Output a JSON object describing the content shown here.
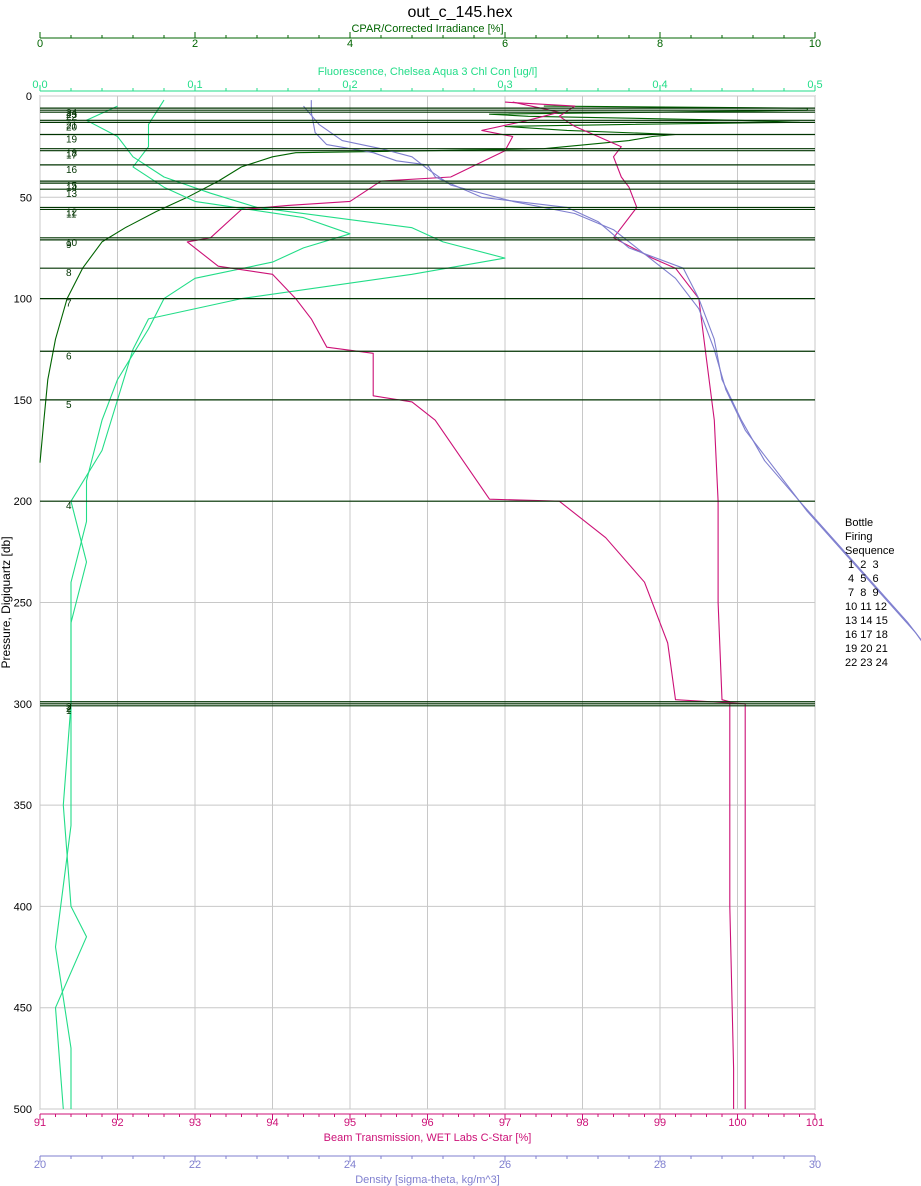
{
  "chart_data": {
    "type": "line",
    "title": "out_c_145.hex",
    "y_axis": {
      "label": "Pressure, Digiquartz [db]",
      "range": [
        0,
        500
      ],
      "ticks": [
        0,
        50,
        100,
        150,
        200,
        250,
        300,
        350,
        400,
        450,
        500
      ],
      "inverted": true
    },
    "x_axes": [
      {
        "id": "par",
        "label": "CPAR/Corrected Irradiance [%]",
        "position": "top-1",
        "range": [
          0,
          10
        ],
        "ticks": [
          0,
          2,
          4,
          6,
          8,
          10
        ],
        "color": "#006400"
      },
      {
        "id": "fl",
        "label": "Fluorescence, Chelsea Aqua 3 Chl Con [ug/l]",
        "position": "top-2",
        "range": [
          0,
          0.5
        ],
        "ticks": [
          0.0,
          0.1,
          0.2,
          0.3,
          0.4,
          0.5
        ],
        "tick_labels": [
          "0,0",
          "0,1",
          "0,2",
          "0,3",
          "0,4",
          "0,5"
        ],
        "color": "#22dd88"
      },
      {
        "id": "bt",
        "label": "Beam Transmission, WET Labs C-Star [%]",
        "position": "bottom-1",
        "range": [
          91,
          101
        ],
        "ticks": [
          91,
          92,
          93,
          94,
          95,
          96,
          97,
          98,
          99,
          100,
          101
        ],
        "color": "#cc1177"
      },
      {
        "id": "dens",
        "label": "Density [sigma-theta, kg/m^3]",
        "position": "bottom-2",
        "range": [
          20,
          30
        ],
        "ticks": [
          20,
          22,
          24,
          26,
          28,
          30
        ],
        "color": "#7f7fcf"
      }
    ],
    "grid": true,
    "bottle_firings": [
      {
        "label": "24",
        "p": 6
      },
      {
        "label": "23",
        "p": 7
      },
      {
        "label": "22",
        "p": 8
      },
      {
        "label": "21",
        "p": 12
      },
      {
        "label": "20",
        "p": 13
      },
      {
        "label": "19",
        "p": 19
      },
      {
        "label": "18",
        "p": 26
      },
      {
        "label": "17",
        "p": 27
      },
      {
        "label": "16",
        "p": 34
      },
      {
        "label": "15",
        "p": 42
      },
      {
        "label": "14",
        "p": 43
      },
      {
        "label": "13",
        "p": 46
      },
      {
        "label": "12",
        "p": 55
      },
      {
        "label": "11",
        "p": 56
      },
      {
        "label": "10",
        "p": 70
      },
      {
        "label": "9",
        "p": 71
      },
      {
        "label": "8",
        "p": 85
      },
      {
        "label": "7",
        "p": 100
      },
      {
        "label": "6",
        "p": 126
      },
      {
        "label": "5",
        "p": 150
      },
      {
        "label": "4",
        "p": 200
      },
      {
        "label": "3",
        "p": 299
      },
      {
        "label": "2",
        "p": 300
      },
      {
        "label": "1",
        "p": 301
      }
    ],
    "series": [
      {
        "axis": "par",
        "color": "#006400",
        "points": [
          [
            0.0,
            181
          ],
          [
            0.05,
            160
          ],
          [
            0.1,
            140
          ],
          [
            0.2,
            120
          ],
          [
            0.35,
            100
          ],
          [
            0.55,
            85
          ],
          [
            0.8,
            72
          ],
          [
            1.1,
            65
          ],
          [
            1.5,
            57
          ],
          [
            1.9,
            50
          ],
          [
            2.3,
            42
          ],
          [
            2.6,
            35
          ],
          [
            3.0,
            30
          ],
          [
            3.3,
            28
          ],
          [
            5.0,
            27
          ],
          [
            6.5,
            26
          ],
          [
            7.6,
            22
          ],
          [
            7.9,
            20
          ],
          [
            8.2,
            19
          ],
          [
            6.8,
            17
          ],
          [
            6.0,
            15
          ],
          [
            7.6,
            14
          ],
          [
            9.8,
            13
          ],
          [
            9.0,
            12
          ],
          [
            6.3,
            10
          ],
          [
            5.8,
            9
          ],
          [
            7.9,
            8
          ],
          [
            9.9,
            7
          ],
          [
            9.9,
            6
          ],
          [
            6.5,
            5
          ]
        ]
      },
      {
        "axis": "fl",
        "color": "#22dd88",
        "points": [
          [
            0.05,
            5
          ],
          [
            0.03,
            12
          ],
          [
            0.05,
            20
          ],
          [
            0.06,
            30
          ],
          [
            0.08,
            40
          ],
          [
            0.11,
            48
          ],
          [
            0.14,
            55
          ],
          [
            0.24,
            65
          ],
          [
            0.26,
            72
          ],
          [
            0.3,
            80
          ],
          [
            0.24,
            88
          ],
          [
            0.13,
            100
          ],
          [
            0.07,
            110
          ],
          [
            0.06,
            125
          ],
          [
            0.05,
            150
          ],
          [
            0.04,
            175
          ],
          [
            0.02,
            200
          ],
          [
            0.03,
            230
          ],
          [
            0.02,
            260
          ],
          [
            0.02,
            300
          ],
          [
            0.015,
            350
          ],
          [
            0.02,
            400
          ],
          [
            0.03,
            415
          ],
          [
            0.01,
            450
          ],
          [
            0.015,
            500
          ]
        ]
      },
      {
        "axis": "fl",
        "color": "#22dd88",
        "points": [
          [
            0.08,
            2
          ],
          [
            0.07,
            14
          ],
          [
            0.07,
            25
          ],
          [
            0.06,
            35
          ],
          [
            0.08,
            45
          ],
          [
            0.1,
            52
          ],
          [
            0.17,
            60
          ],
          [
            0.2,
            68
          ],
          [
            0.17,
            75
          ],
          [
            0.15,
            82
          ],
          [
            0.1,
            90
          ],
          [
            0.08,
            100
          ],
          [
            0.07,
            115
          ],
          [
            0.05,
            140
          ],
          [
            0.04,
            160
          ],
          [
            0.03,
            190
          ],
          [
            0.03,
            210
          ],
          [
            0.02,
            240
          ],
          [
            0.02,
            280
          ],
          [
            0.02,
            320
          ],
          [
            0.02,
            360
          ],
          [
            0.01,
            420
          ],
          [
            0.02,
            470
          ],
          [
            0.02,
            500
          ]
        ]
      },
      {
        "axis": "bt",
        "color": "#cc1177",
        "points": [
          [
            97.0,
            3
          ],
          [
            97.9,
            5
          ],
          [
            97.7,
            10
          ],
          [
            97.9,
            15
          ],
          [
            98.2,
            20
          ],
          [
            98.5,
            25
          ],
          [
            98.4,
            30
          ],
          [
            98.5,
            40
          ],
          [
            98.6,
            45
          ],
          [
            98.7,
            55
          ],
          [
            98.5,
            65
          ],
          [
            98.4,
            70
          ],
          [
            98.9,
            80
          ],
          [
            99.2,
            85
          ],
          [
            99.5,
            100
          ],
          [
            99.6,
            130
          ],
          [
            99.7,
            160
          ],
          [
            99.75,
            200
          ],
          [
            99.75,
            250
          ],
          [
            99.8,
            298
          ],
          [
            99.9,
            299
          ],
          [
            99.9,
            350
          ],
          [
            99.9,
            400
          ],
          [
            99.95,
            480
          ],
          [
            99.95,
            500
          ]
        ]
      },
      {
        "axis": "bt",
        "color": "#cc1177",
        "points": [
          [
            97.1,
            3
          ],
          [
            97.7,
            8
          ],
          [
            97.3,
            12
          ],
          [
            96.7,
            17
          ],
          [
            97.1,
            20
          ],
          [
            97.0,
            27
          ],
          [
            96.3,
            40
          ],
          [
            95.4,
            42
          ],
          [
            95.0,
            52
          ],
          [
            94.2,
            54
          ],
          [
            93.6,
            56
          ],
          [
            93.2,
            70
          ],
          [
            92.9,
            72
          ],
          [
            93.3,
            84
          ],
          [
            94.0,
            88
          ],
          [
            94.3,
            100
          ],
          [
            94.5,
            110
          ],
          [
            94.7,
            124
          ],
          [
            95.3,
            127
          ],
          [
            95.3,
            148
          ],
          [
            95.8,
            151
          ],
          [
            96.1,
            160
          ],
          [
            96.8,
            199
          ],
          [
            97.7,
            200
          ],
          [
            98.3,
            218
          ],
          [
            98.8,
            240
          ],
          [
            99.1,
            270
          ],
          [
            99.2,
            298
          ],
          [
            100.1,
            300
          ],
          [
            100.1,
            360
          ],
          [
            100.1,
            420
          ],
          [
            100.1,
            500
          ]
        ]
      },
      {
        "axis": "dens",
        "color": "#7f7fcf",
        "points": [
          [
            23.5,
            2
          ],
          [
            23.5,
            8
          ],
          [
            23.55,
            18
          ],
          [
            23.7,
            24
          ],
          [
            24.3,
            28
          ],
          [
            24.6,
            32
          ],
          [
            25.0,
            34
          ],
          [
            25.1,
            40
          ],
          [
            25.7,
            50
          ],
          [
            26.8,
            55
          ],
          [
            27.2,
            62
          ],
          [
            27.6,
            75
          ],
          [
            28.3,
            85
          ],
          [
            28.5,
            100
          ],
          [
            28.7,
            120
          ],
          [
            28.8,
            140
          ],
          [
            29.05,
            160
          ],
          [
            29.35,
            180
          ],
          [
            29.8,
            200
          ],
          [
            30.5,
            230
          ],
          [
            31.2,
            260
          ],
          [
            31.8,
            290
          ],
          [
            32.1,
            310
          ],
          [
            32.5,
            330
          ],
          [
            32.9,
            360
          ],
          [
            33.3,
            390
          ],
          [
            33.6,
            420
          ],
          [
            33.9,
            450
          ],
          [
            34.1,
            480
          ],
          [
            34.2,
            500
          ]
        ]
      },
      {
        "axis": "dens",
        "color": "#7f7fcf",
        "points": [
          [
            23.4,
            5
          ],
          [
            23.6,
            14
          ],
          [
            23.9,
            22
          ],
          [
            24.4,
            26
          ],
          [
            24.8,
            30
          ],
          [
            25.0,
            36
          ],
          [
            25.3,
            44
          ],
          [
            26.1,
            52
          ],
          [
            26.9,
            58
          ],
          [
            27.4,
            66
          ],
          [
            27.8,
            78
          ],
          [
            28.2,
            90
          ],
          [
            28.5,
            105
          ],
          [
            28.7,
            125
          ],
          [
            28.85,
            145
          ],
          [
            29.1,
            165
          ],
          [
            29.5,
            185
          ],
          [
            29.9,
            205
          ],
          [
            30.6,
            235
          ],
          [
            31.3,
            265
          ],
          [
            31.8,
            292
          ],
          [
            32.2,
            315
          ],
          [
            32.6,
            340
          ],
          [
            33.0,
            370
          ],
          [
            33.4,
            400
          ],
          [
            33.7,
            430
          ],
          [
            34.0,
            460
          ],
          [
            34.2,
            490
          ],
          [
            34.2,
            500
          ]
        ]
      }
    ],
    "legend": {
      "title_lines": [
        "Bottle",
        "Firing",
        "Sequence"
      ],
      "rows": [
        " 1  2  3",
        " 4  5  6",
        " 7  8  9",
        "10 11 12",
        "13 14 15",
        "16 17 18",
        "19 20 21",
        "22 23 24"
      ]
    }
  }
}
